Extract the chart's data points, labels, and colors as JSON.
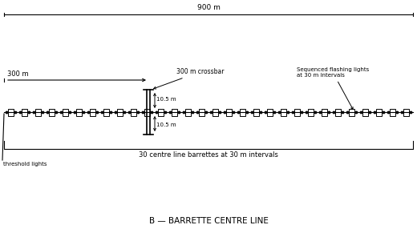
{
  "title_900": "900 m",
  "label_300": "300 m",
  "label_crossbar": "300 m crossbar",
  "label_10_5_top": "10.5 m",
  "label_10_5_bot": "10.5 m",
  "label_seq": "Sequenced flashing lights\nat 30 m intervals",
  "label_barrettes": "30 centre line barrettes at 30 m intervals",
  "label_threshold": "threshold lights",
  "label_bottom": "B — BARRETTE CENTRE LINE",
  "bg_color": "#ffffff",
  "line_color": "#000000",
  "text_color": "#000000",
  "fig_width": 5.2,
  "fig_height": 2.91,
  "dpi": 100
}
